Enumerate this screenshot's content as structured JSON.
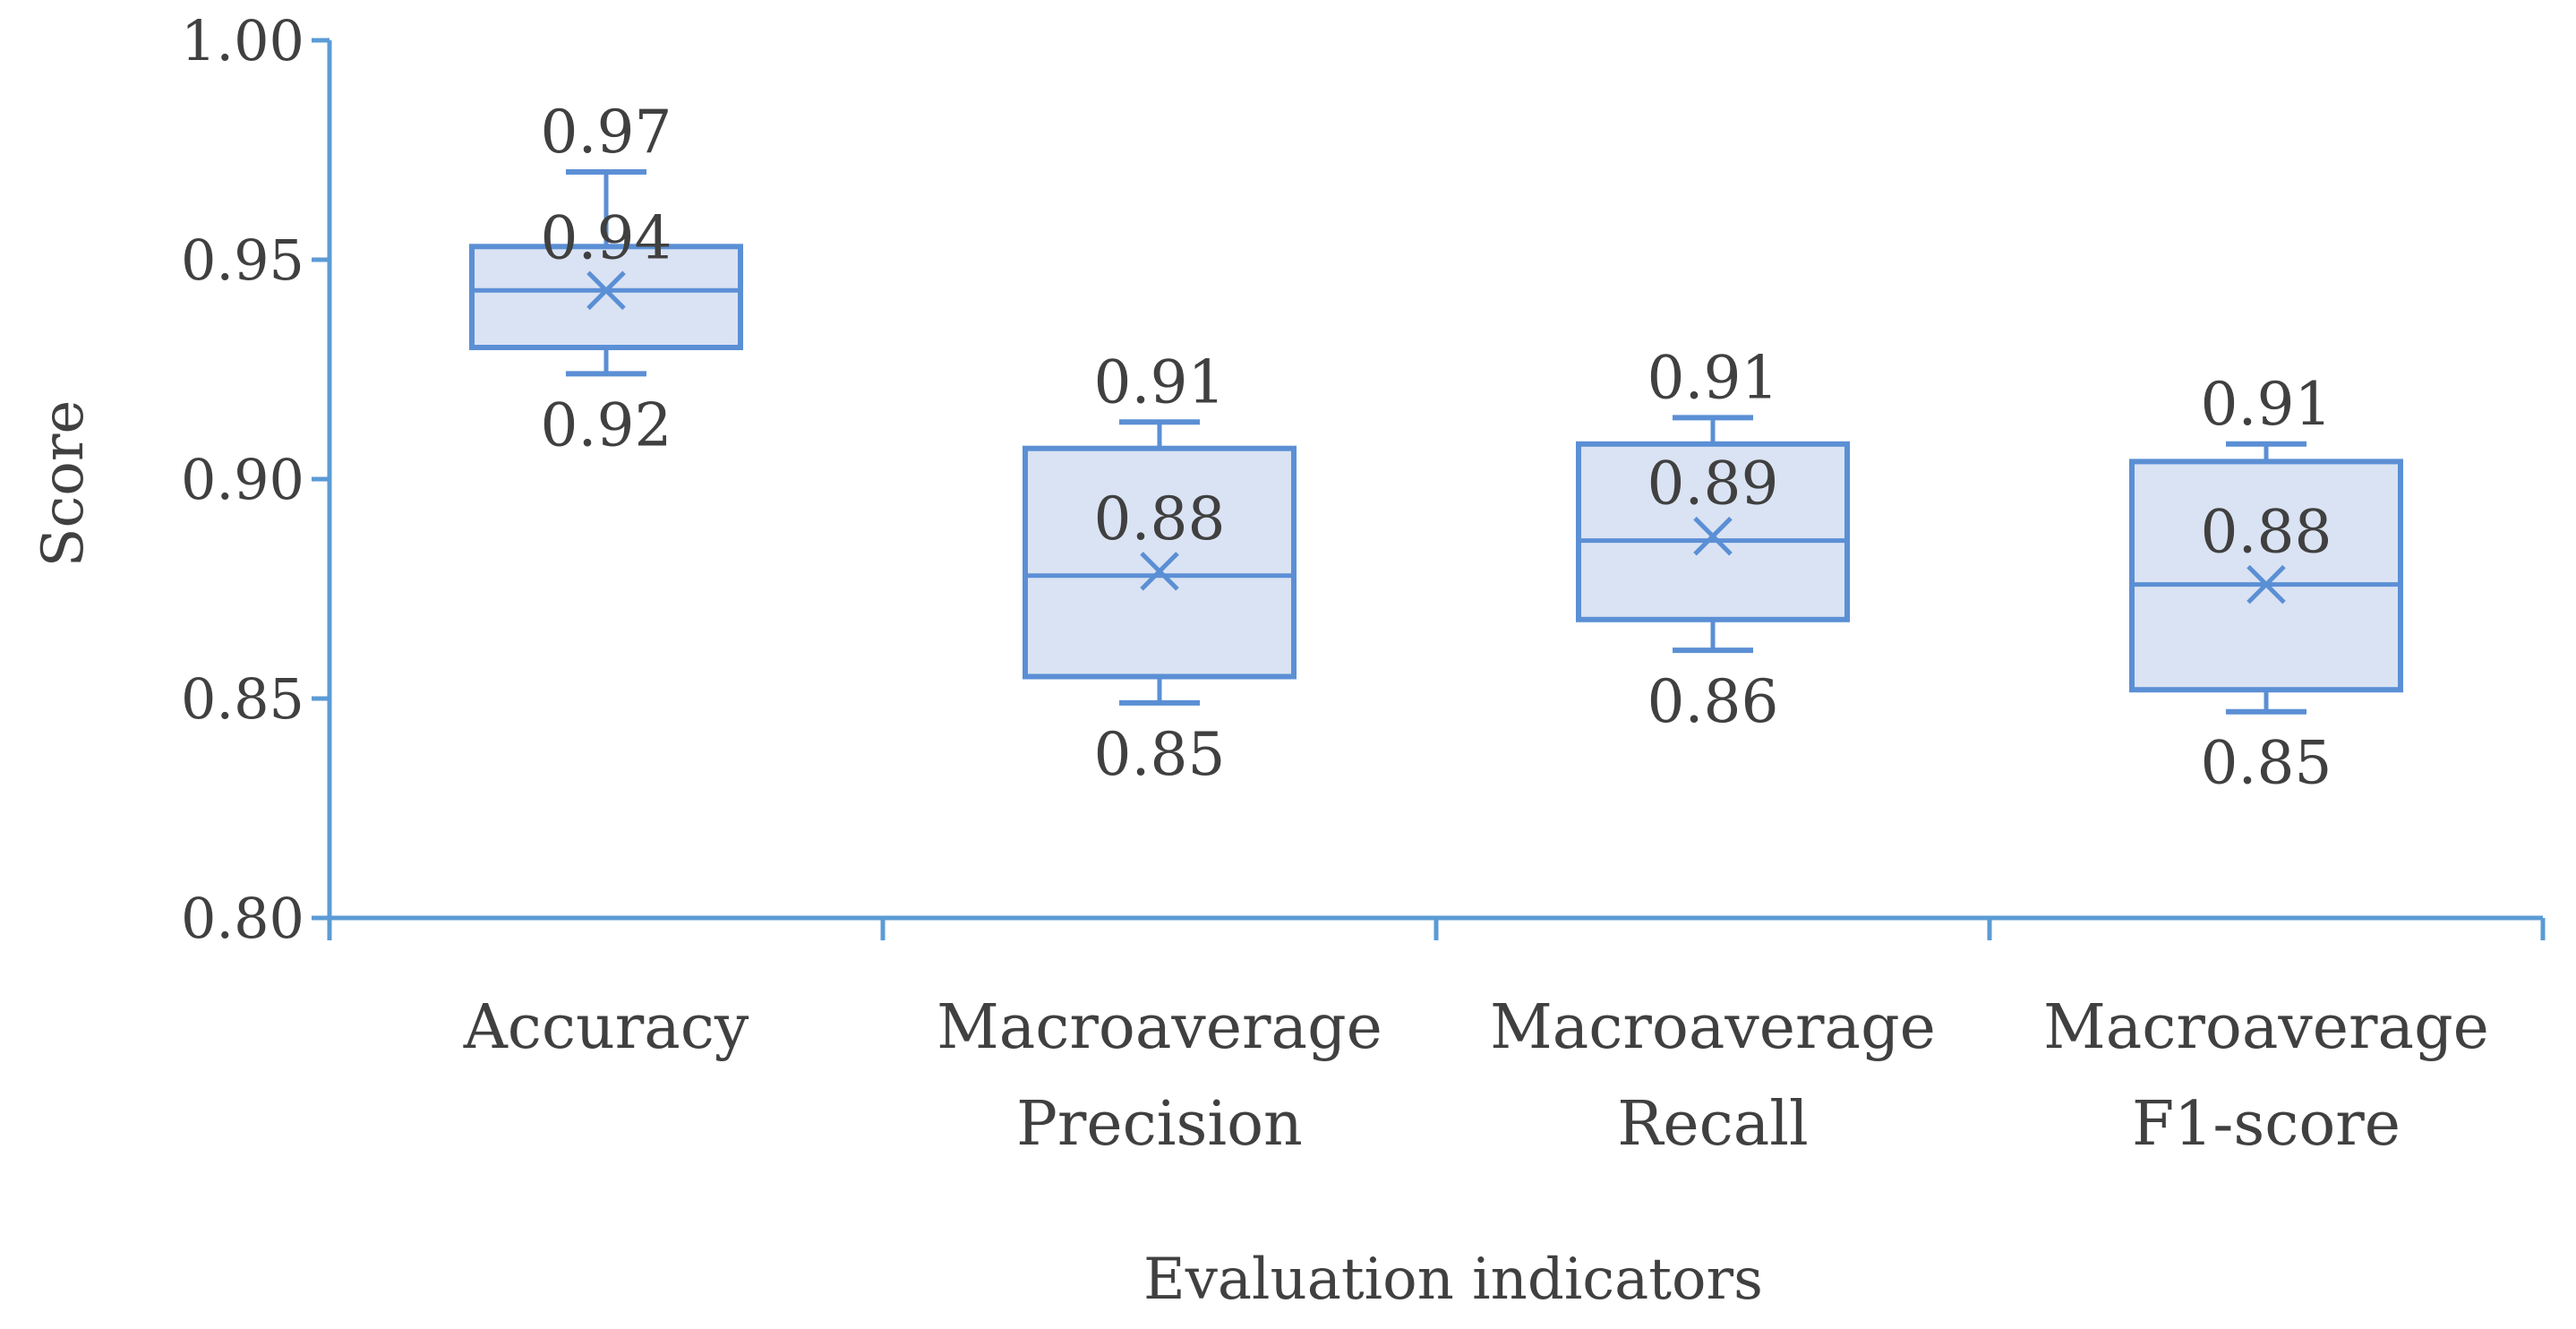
{
  "chart_data": {
    "type": "box",
    "xlabel": "Evaluation indicators",
    "ylabel": "Score",
    "ylim": [
      0.8,
      1.0
    ],
    "yticks": [
      0.8,
      0.85,
      0.9,
      0.95,
      1.0
    ],
    "ytick_labels": [
      "0.80",
      "0.85",
      "0.90",
      "0.95",
      "1.00"
    ],
    "grid": false,
    "categories": [
      [
        "Accuracy"
      ],
      [
        "Macroaverage",
        "Precision"
      ],
      [
        "Macroaverage",
        "Recall"
      ],
      [
        "Macroaverage",
        "F1-score"
      ]
    ],
    "boxes": [
      {
        "min": 0.924,
        "q1": 0.93,
        "median": 0.943,
        "q3": 0.953,
        "max": 0.97,
        "mean": 0.943,
        "labels": {
          "max": "0.97",
          "mean": "0.94",
          "min": "0.92"
        }
      },
      {
        "min": 0.849,
        "q1": 0.855,
        "median": 0.878,
        "q3": 0.907,
        "max": 0.913,
        "mean": 0.879,
        "labels": {
          "max": "0.91",
          "mean": "0.88",
          "min": "0.85"
        }
      },
      {
        "min": 0.861,
        "q1": 0.868,
        "median": 0.886,
        "q3": 0.908,
        "max": 0.914,
        "mean": 0.887,
        "labels": {
          "max": "0.91",
          "mean": "0.89",
          "min": "0.86"
        }
      },
      {
        "min": 0.847,
        "q1": 0.852,
        "median": 0.876,
        "q3": 0.904,
        "max": 0.908,
        "mean": 0.876,
        "labels": {
          "max": "0.91",
          "mean": "0.88",
          "min": "0.85"
        }
      }
    ],
    "colors": {
      "box_fill": "#dae3f3",
      "stroke": "#5b8fd5",
      "axis": "#5b9bd5",
      "text": "#404040"
    }
  }
}
